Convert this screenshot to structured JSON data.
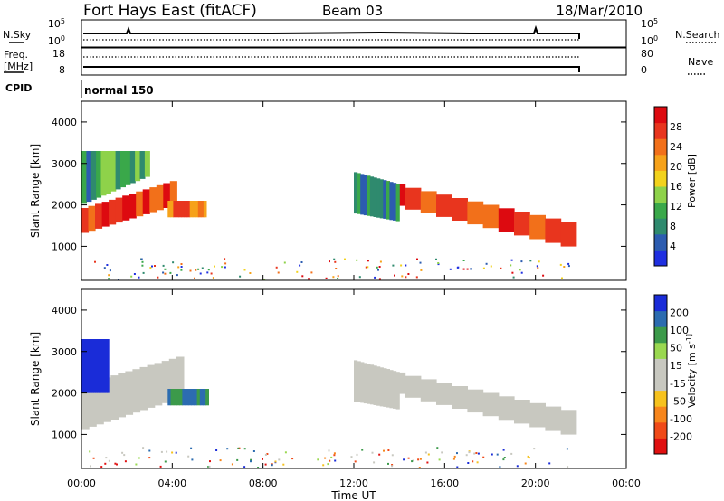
{
  "header": {
    "station": "Fort Hays East (fitACF)",
    "beam": "Beam 03",
    "date": "18/Mar/2010"
  },
  "noise_panel": {
    "left_label": "N.Sky",
    "left_ticks": [
      "10^5",
      "10^0"
    ],
    "right_label": "N.Search",
    "right_ticks": [
      "10^5",
      "10^0"
    ]
  },
  "freq_panel": {
    "left_label_1": "Freq.",
    "left_label_2": "[MHz]",
    "left_ticks": [
      "18",
      "8"
    ],
    "right_label": "Nave",
    "right_ticks": [
      "80",
      "0"
    ]
  },
  "cpid_panel": {
    "label": "CPID",
    "mode": "normal 150"
  },
  "colors": {
    "power_scale": [
      "#1f2fe0",
      "#2c5cb0",
      "#2f8a6e",
      "#3aa84a",
      "#8ed24a",
      "#f2d21c",
      "#f6a21a",
      "#f2701a",
      "#e8351e",
      "#dd0a10"
    ],
    "velocity_scale": [
      "#e01010",
      "#f04a18",
      "#f7861c",
      "#f6c21e",
      "#c8c8c0",
      "#c8c8c0",
      "#9ad850",
      "#3c9a4a",
      "#2c6cb0",
      "#1a2cd8"
    ]
  },
  "chart_data": [
    {
      "type": "heatmap",
      "quantity": "Power",
      "ylabel": "Slant Range [km]",
      "y_ticks": [
        "1000",
        "2000",
        "3000",
        "4000"
      ],
      "ylim": [
        180,
        4500
      ],
      "xlim": [
        0,
        24
      ],
      "x_ticks": [
        "00:00",
        "04:00",
        "08:00",
        "12:00",
        "16:00",
        "20:00",
        "00:00"
      ],
      "colorbar": {
        "label": "Power [dB]",
        "range": [
          0,
          32
        ],
        "tick_labels": [
          "4",
          "8",
          "12",
          "16",
          "20",
          "24",
          "28"
        ]
      },
      "regions": [
        {
          "t": [
            0.0,
            4.2
          ],
          "r_low": [
            1300,
            2000
          ],
          "r_high": [
            1900,
            2600
          ],
          "value": 27
        },
        {
          "t": [
            0.0,
            3.0
          ],
          "r_low": [
            2000,
            2700
          ],
          "r_high": [
            3300,
            3300
          ],
          "value": 11
        },
        {
          "t": [
            3.8,
            5.5
          ],
          "r_low": [
            1700,
            1700
          ],
          "r_high": [
            2100,
            2100
          ],
          "value": 24
        },
        {
          "t": [
            12.2,
            21.8
          ],
          "r_low": [
            2200,
            950
          ],
          "r_high": [
            2700,
            1550
          ],
          "value": 26
        },
        {
          "t": [
            12.0,
            14.0
          ],
          "r_low": [
            1800,
            1600
          ],
          "r_high": [
            2800,
            2500
          ],
          "value": 9
        }
      ]
    },
    {
      "type": "heatmap",
      "quantity": "Velocity",
      "ylabel": "Slant Range [km]",
      "y_ticks": [
        "1000",
        "2000",
        "3000",
        "4000"
      ],
      "ylim": [
        180,
        4500
      ],
      "xlim": [
        0,
        24
      ],
      "x_ticks": [
        "00:00",
        "04:00",
        "08:00",
        "12:00",
        "16:00",
        "20:00",
        "00:00"
      ],
      "xlabel": "Time UT",
      "colorbar": {
        "label": "Velocity [m s^-1]",
        "range": [
          -250,
          250
        ],
        "tick_labels": [
          "200",
          "100",
          "50",
          "15",
          "-15",
          "-50",
          "-100",
          "-200"
        ]
      },
      "regions": [
        {
          "t": [
            0.0,
            4.5
          ],
          "r_low": [
            1100,
            1900
          ],
          "r_high": [
            2200,
            2900
          ],
          "value": 0
        },
        {
          "t": [
            0.0,
            1.2
          ],
          "r_low": [
            2000,
            2000
          ],
          "r_high": [
            3300,
            3300
          ],
          "value": 220
        },
        {
          "t": [
            3.8,
            5.6
          ],
          "r_low": [
            1700,
            1700
          ],
          "r_high": [
            2100,
            2100
          ],
          "value": 150
        },
        {
          "t": [
            12.2,
            21.8
          ],
          "r_low": [
            2200,
            950
          ],
          "r_high": [
            2700,
            1550
          ],
          "value": 0
        },
        {
          "t": [
            12.0,
            14.0
          ],
          "r_low": [
            1800,
            1600
          ],
          "r_high": [
            2800,
            2500
          ],
          "value": 40
        }
      ]
    }
  ]
}
